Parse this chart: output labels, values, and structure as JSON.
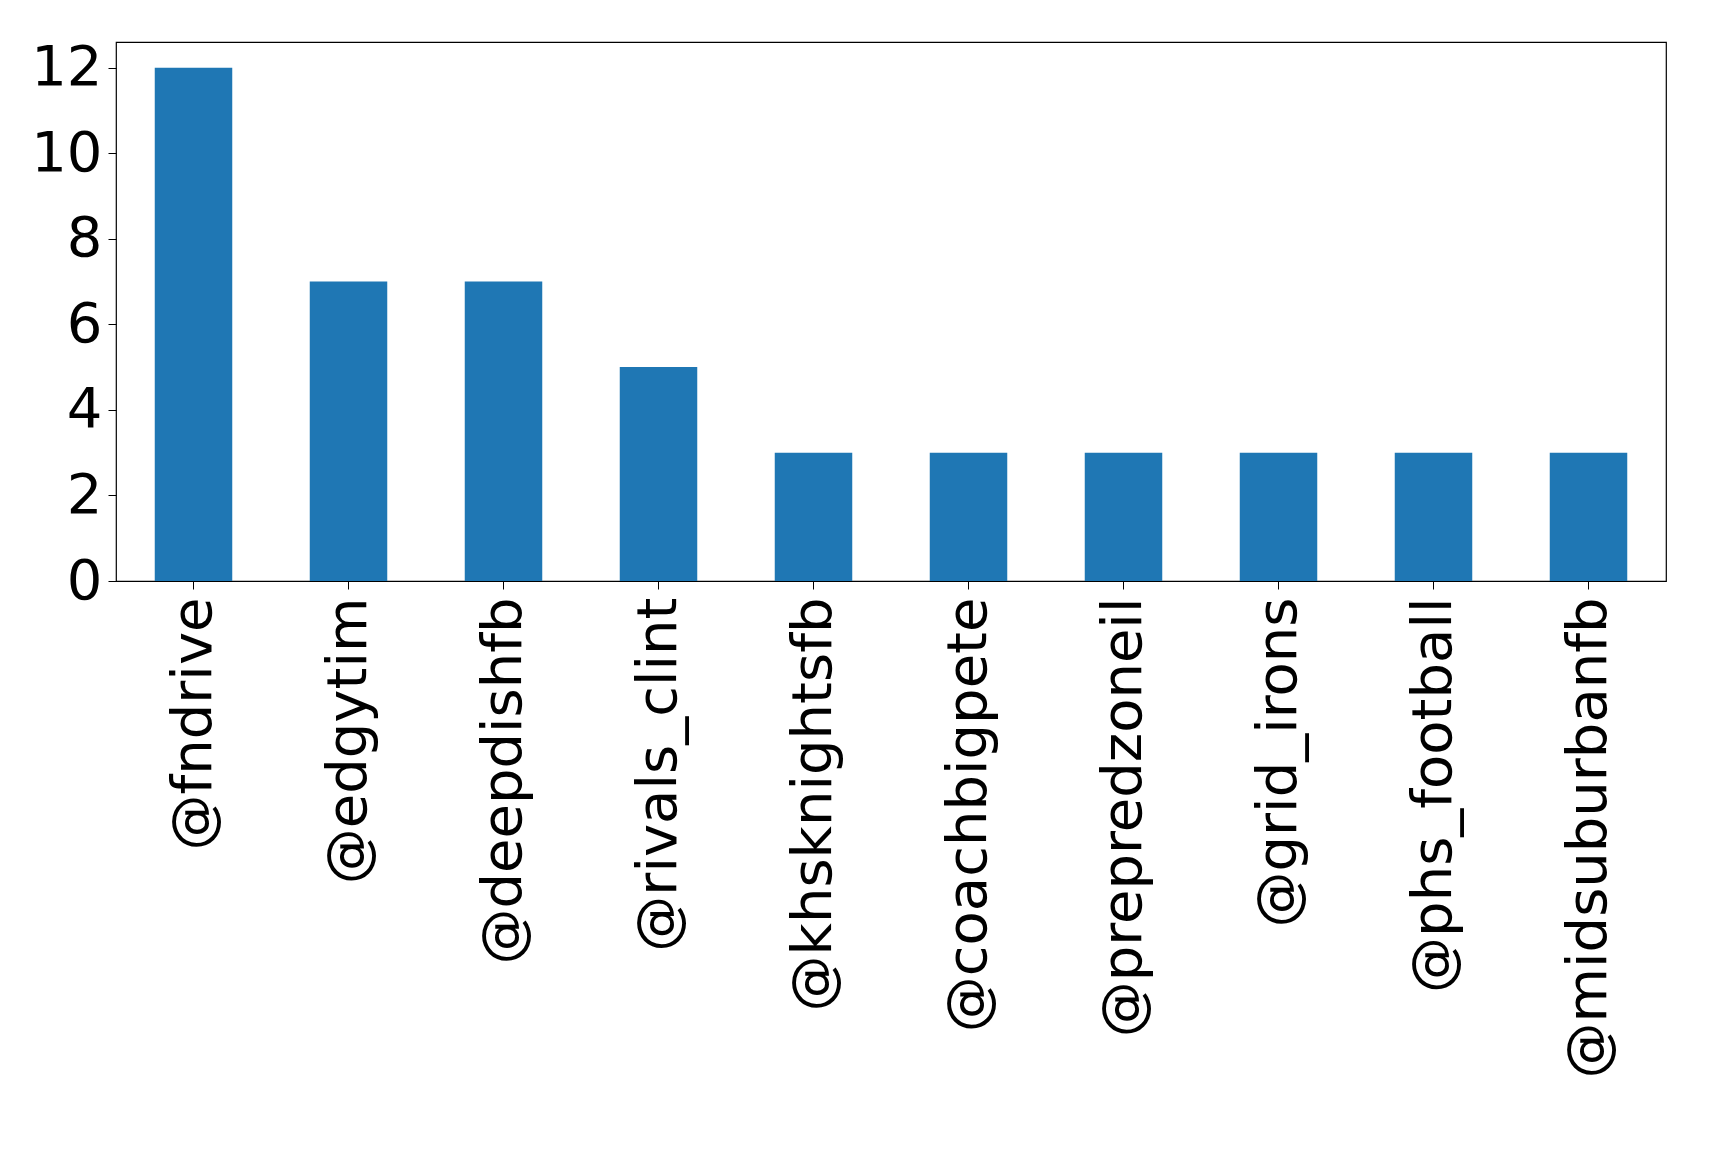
{
  "chart_data": {
    "type": "bar",
    "categories": [
      "@fndrive",
      "@edgytim",
      "@deepdishfb",
      "@rivals_clint",
      "@khsknightsfb",
      "@coachbigpete",
      "@prepredzoneil",
      "@grid_irons",
      "@phs_football",
      "@midsuburbanfb"
    ],
    "values": [
      12,
      7,
      7,
      5,
      3,
      3,
      3,
      3,
      3,
      3
    ],
    "color": "#1f77b4",
    "ylim": [
      0,
      12.6
    ],
    "yticks": [
      0,
      2,
      4,
      6,
      8,
      10,
      12
    ],
    "grid": false
  }
}
